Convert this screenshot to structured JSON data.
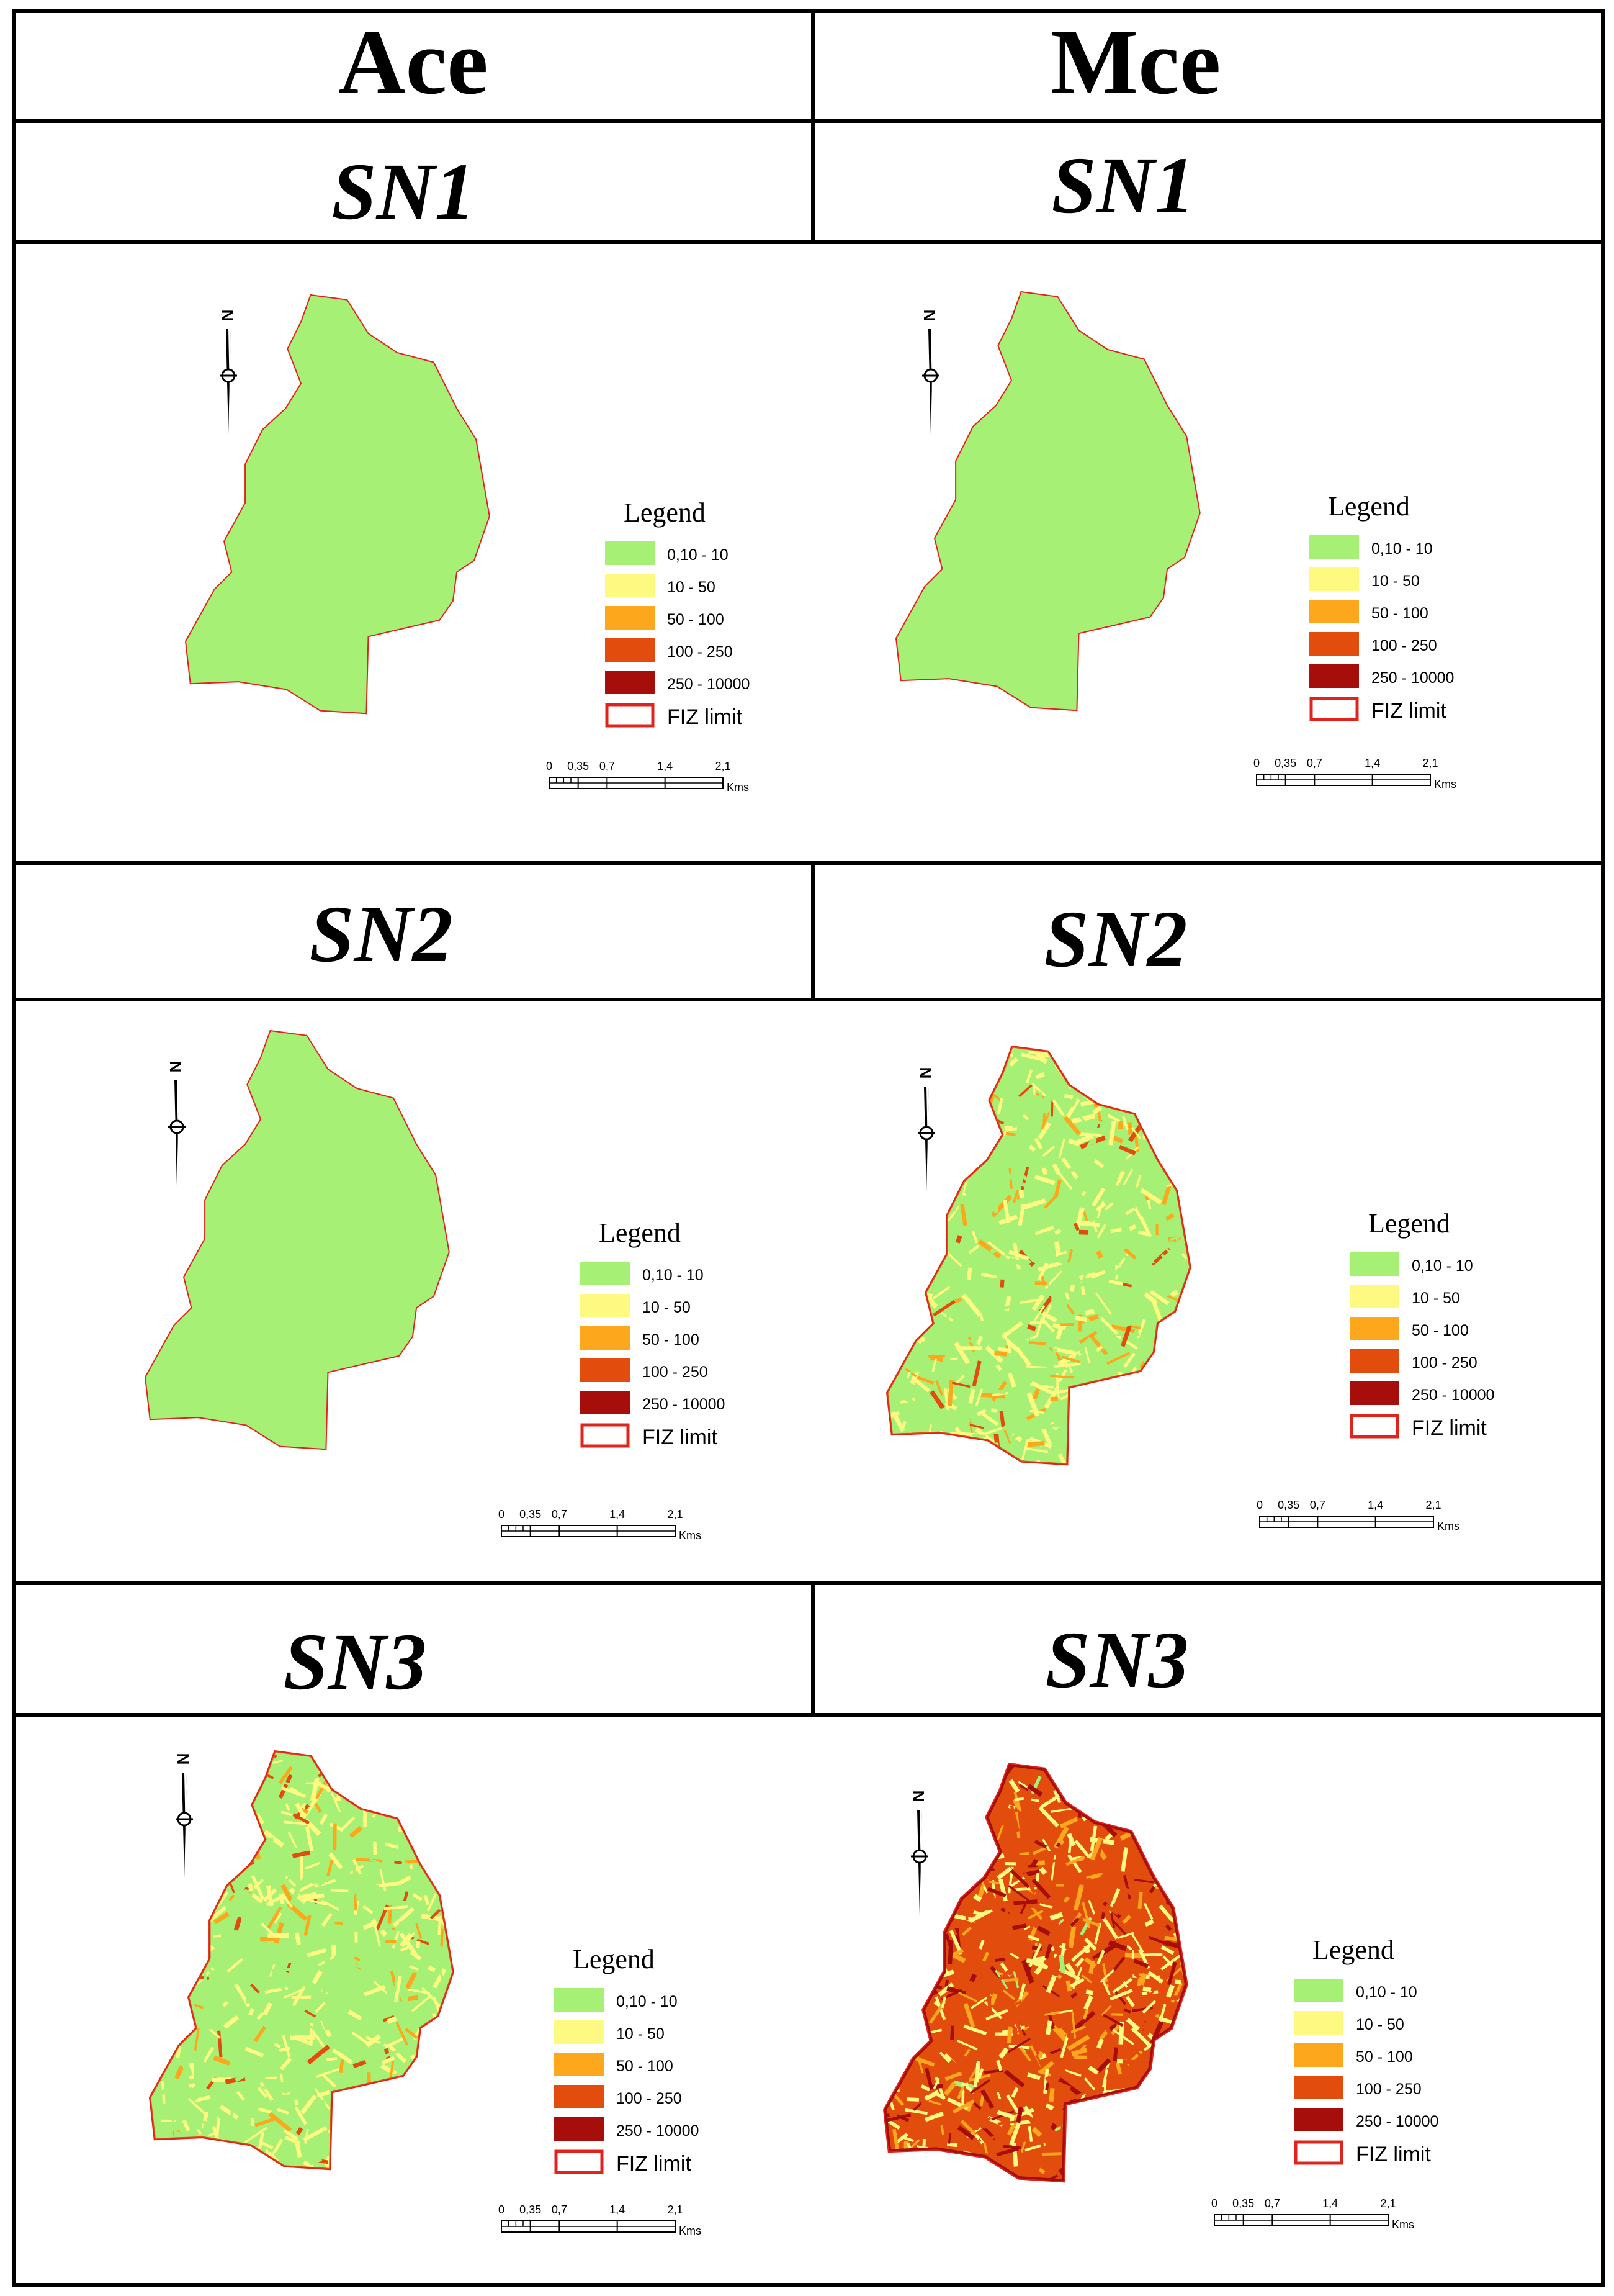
{
  "columns": [
    {
      "heading": "Ace"
    },
    {
      "heading": "Mce"
    }
  ],
  "rows": [
    {
      "scenario": "SN1",
      "maps": [
        {
          "pattern": "uniform-low"
        },
        {
          "pattern": "uniform-low"
        }
      ]
    },
    {
      "scenario": "SN2",
      "maps": [
        {
          "pattern": "uniform-low"
        },
        {
          "pattern": "mixed-low-moderate"
        }
      ]
    },
    {
      "scenario": "SN3",
      "maps": [
        {
          "pattern": "mixed-low-moderate"
        },
        {
          "pattern": "mostly-high"
        }
      ]
    }
  ],
  "legend": {
    "title": "Legend",
    "classes": [
      {
        "label": "0,10 - 10",
        "color": "#a6f075"
      },
      {
        "label": "10 - 50",
        "color": "#fdf981"
      },
      {
        "label": "50 - 100",
        "color": "#fda81c"
      },
      {
        "label": "100 - 250",
        "color": "#e24c0c"
      },
      {
        "label": "250 - 10000",
        "color": "#a50e0a"
      }
    ],
    "boundary": {
      "label": "FIZ limit",
      "color": "#e0241d"
    }
  },
  "scalebar": {
    "ticks": [
      "0",
      "0,35",
      "0,7",
      "1,4",
      "2,1"
    ],
    "tick_km": [
      0,
      0.35,
      0.7,
      1.4,
      2.1
    ],
    "unit": "Kms"
  },
  "north_arrow": {
    "label": "N"
  }
}
